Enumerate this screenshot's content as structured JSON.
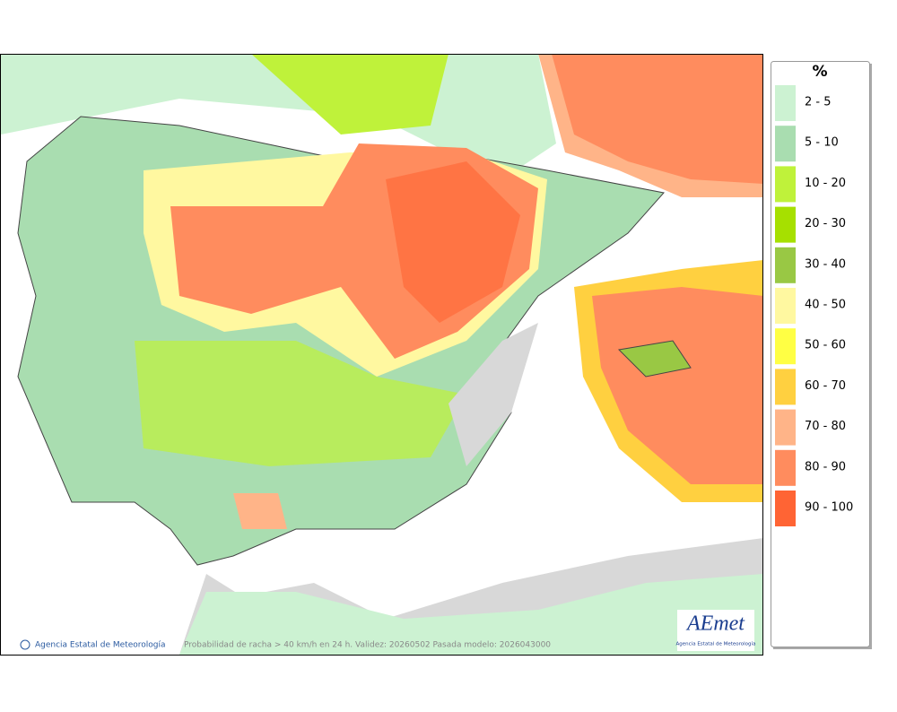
{
  "legend": {
    "title": "%",
    "items": [
      {
        "label": "2 - 5",
        "color": "#ccf2d2"
      },
      {
        "label": "5 - 10",
        "color": "#a9ddb0"
      },
      {
        "label": "10 - 20",
        "color": "#bff23a"
      },
      {
        "label": "20 - 30",
        "color": "#a6e000"
      },
      {
        "label": "30 - 40",
        "color": "#99c844"
      },
      {
        "label": "40 - 50",
        "color": "#fff8a0"
      },
      {
        "label": "50 - 60",
        "color": "#ffff44"
      },
      {
        "label": "60 - 70",
        "color": "#ffd040"
      },
      {
        "label": "70 - 80",
        "color": "#ffb488"
      },
      {
        "label": "80 - 90",
        "color": "#ff8c5e"
      },
      {
        "label": "90 - 100",
        "color": "#ff6434"
      }
    ]
  },
  "footer": {
    "copyright": "Agencia Estatal de Meteorología",
    "caption": "Probabilidad de racha > 40 km/h en 24 h. Validez: 20260502 Pasada modelo: 2026043000"
  },
  "logo": {
    "name": "AEmet",
    "subtitle": "Agencia Estatal de Meteorología"
  }
}
